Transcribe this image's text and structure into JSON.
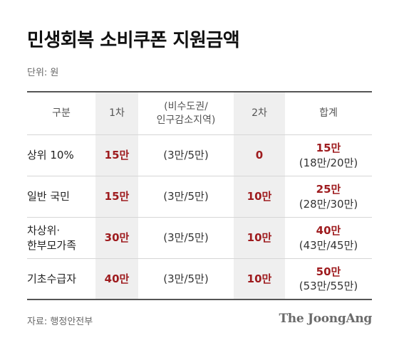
{
  "title": "민생회복 소비쿠폰 지원금액",
  "unit": "단위: 원",
  "header": {
    "category": "구분",
    "first": "1차",
    "extra_line1": "(비수도권/",
    "extra_line2": "인구감소지역)",
    "second": "2차",
    "total": "합계"
  },
  "rows": [
    {
      "category_line1": "상위 10%",
      "category_line2": "",
      "first": "15만",
      "extra": "(3만/5만)",
      "second": "0",
      "total": "15만",
      "total_detail": "(18만/20만)"
    },
    {
      "category_line1": "일반 국민",
      "category_line2": "",
      "first": "15만",
      "extra": "(3만/5만)",
      "second": "10만",
      "total": "25만",
      "total_detail": "(28만/30만)"
    },
    {
      "category_line1": "차상위·",
      "category_line2": "한부모가족",
      "first": "30만",
      "extra": "(3만/5만)",
      "second": "10만",
      "total": "40만",
      "total_detail": "(43만/45만)"
    },
    {
      "category_line1": "기초수급자",
      "category_line2": "",
      "first": "40만",
      "extra": "(3만/5만)",
      "second": "10만",
      "total": "50만",
      "total_detail": "(53만/55만)"
    }
  ],
  "source": "자료: 행정안전부",
  "logo": "The JoongAng",
  "colors": {
    "accent": "#9e1b1e",
    "shade": "#efefef"
  }
}
